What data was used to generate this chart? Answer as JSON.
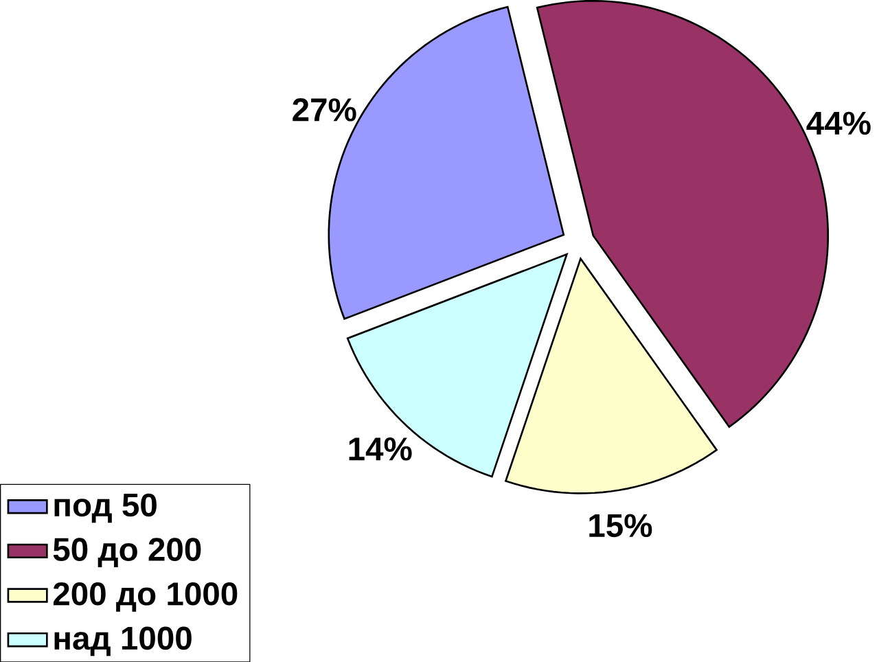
{
  "chart_data": {
    "type": "pie",
    "categories": [
      "под 50",
      "50 до 200",
      "200 до 1000",
      "над 1000"
    ],
    "values": [
      27,
      44,
      15,
      14
    ],
    "value_labels": [
      "27%",
      "44%",
      "15%",
      "14%"
    ],
    "colors": [
      "#9999ff",
      "#993366",
      "#ffffcc",
      "#ccffff"
    ],
    "legend": "bottom left"
  }
}
